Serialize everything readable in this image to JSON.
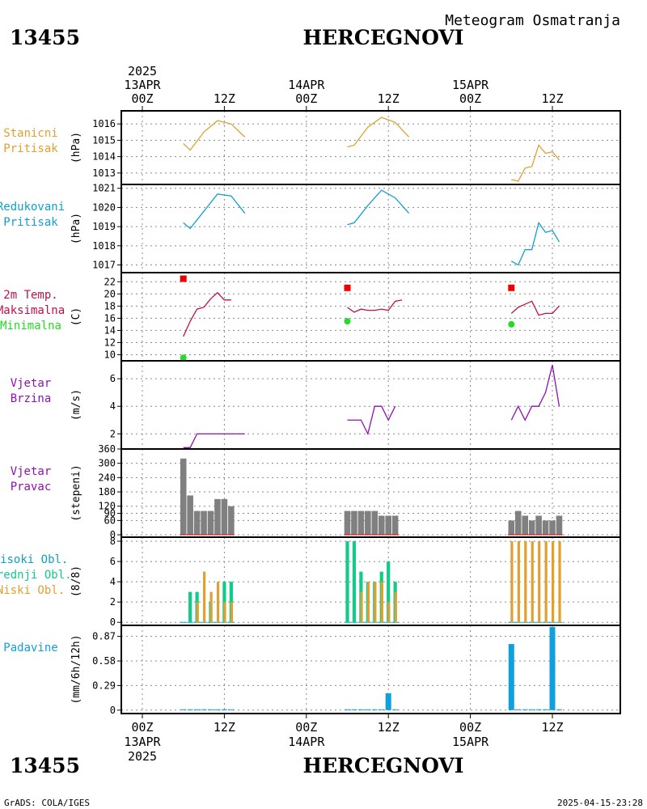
{
  "header": {
    "station_id": "13455",
    "station_name": "HERCEGNOVI",
    "product": "Meteogram Osmatranja",
    "year": "2025"
  },
  "footer": {
    "station_id": "13455",
    "station_name": "HERCEGNOVI",
    "year": "2025",
    "credit": "GrADS: COLA/IGES",
    "timestamp": "2025-04-15-23:28"
  },
  "time_axis": {
    "hour_labels": [
      "00Z",
      "12Z",
      "00Z",
      "12Z",
      "00Z",
      "12Z"
    ],
    "hour_values": [
      0,
      12,
      24,
      36,
      48,
      60
    ],
    "day_labels": [
      "13APR",
      "14APR",
      "15APR"
    ],
    "day_values": [
      0,
      24,
      48
    ]
  },
  "colors": {
    "station_pressure": "#e0a030",
    "reduced_pressure": "#10a0d0",
    "temperature": "#c0104a",
    "tmax": "#ee0000",
    "tmin": "#22dd22",
    "wind": "#9010b0",
    "wind_dir_bar": "#808080",
    "high_cloud": "#10a0c0",
    "mid_cloud": "#10cc88",
    "low_cloud": "#e0a030",
    "precip": "#10a0e0"
  },
  "chart_data": [
    {
      "type": "line",
      "label_lines": [
        "Stanicni",
        "Pritisak"
      ],
      "unit": "(hPa)",
      "ylim": [
        1012.3,
        1016.8
      ],
      "yticks": [
        1013,
        1014,
        1015,
        1016
      ],
      "grid": true,
      "series": [
        {
          "x": [
            6,
            7,
            9,
            11,
            13,
            15
          ],
          "y": [
            1014.8,
            1014.4,
            1015.5,
            1016.2,
            1016.0,
            1015.2
          ]
        },
        {
          "x": [
            30,
            31,
            33,
            35,
            37,
            39
          ],
          "y": [
            1014.6,
            1014.7,
            1015.8,
            1016.4,
            1016.1,
            1015.2
          ]
        },
        {
          "x": [
            54,
            55,
            56,
            57,
            58,
            59,
            60,
            61
          ],
          "y": [
            1012.6,
            1012.5,
            1013.3,
            1013.4,
            1014.7,
            1014.2,
            1014.3,
            1013.8
          ]
        }
      ]
    },
    {
      "type": "line",
      "label_lines": [
        "Redukovani",
        "Pritisak"
      ],
      "unit": "(hPa)",
      "ylim": [
        1016.6,
        1021.2
      ],
      "yticks": [
        1017,
        1018,
        1019,
        1020,
        1021
      ],
      "grid": true,
      "series": [
        {
          "x": [
            6,
            7,
            9,
            11,
            13,
            15
          ],
          "y": [
            1019.2,
            1018.9,
            1019.8,
            1020.7,
            1020.6,
            1019.7
          ]
        },
        {
          "x": [
            30,
            31,
            33,
            35,
            37,
            39
          ],
          "y": [
            1019.1,
            1019.2,
            1020.1,
            1020.9,
            1020.5,
            1019.7
          ]
        },
        {
          "x": [
            54,
            55,
            56,
            57,
            58,
            59,
            60,
            61
          ],
          "y": [
            1017.2,
            1017.0,
            1017.8,
            1017.8,
            1019.2,
            1018.7,
            1018.8,
            1018.2
          ]
        }
      ]
    },
    {
      "type": "line",
      "label_lines": [
        "2m Temp.",
        "Maksimalna",
        "Minimalna"
      ],
      "unit": "(C)",
      "ylim": [
        9,
        23.5
      ],
      "yticks": [
        10,
        12,
        14,
        16,
        18,
        20,
        22
      ],
      "grid": true,
      "series": [
        {
          "name": "2m Temp.",
          "x": [
            6,
            7,
            8,
            9,
            10,
            11,
            12,
            13,
            14,
            15
          ],
          "y": [
            13.0,
            15.5,
            17.5,
            17.8,
            19.2,
            20.2,
            19.0,
            19.0,
            null,
            null
          ]
        },
        {
          "name": "2m Temp.",
          "x": [
            30,
            31,
            32,
            33,
            34,
            35,
            36,
            37,
            38,
            39
          ],
          "y": [
            17.8,
            17.0,
            17.5,
            17.3,
            17.3,
            17.5,
            17.3,
            18.8,
            19.0,
            null
          ]
        },
        {
          "name": "2m Temp.",
          "x": [
            54,
            55,
            56,
            57,
            58,
            59,
            60,
            61
          ],
          "y": [
            16.8,
            17.8,
            18.3,
            18.8,
            16.5,
            16.8,
            16.8,
            18.0
          ]
        }
      ],
      "tmax": {
        "x": [
          6,
          30,
          54
        ],
        "y": [
          22.5,
          21.0,
          21.0
        ]
      },
      "tmin": {
        "x": [
          6,
          30,
          54
        ],
        "y": [
          9.5,
          15.5,
          15.0
        ]
      }
    },
    {
      "type": "line",
      "label_lines": [
        "Vjetar",
        "Brzina"
      ],
      "unit": "(m/s)",
      "ylim": [
        0.9,
        7.3
      ],
      "yticks": [
        2,
        4,
        6
      ],
      "grid": true,
      "series": [
        {
          "x": [
            6,
            7,
            8,
            9,
            10,
            11,
            12,
            13,
            14,
            15
          ],
          "y": [
            1,
            1,
            2,
            2,
            2,
            2,
            2,
            2,
            2,
            2
          ]
        },
        {
          "x": [
            30,
            31,
            32,
            33,
            34,
            35,
            36,
            37,
            38
          ],
          "y": [
            3,
            3,
            3,
            2,
            4,
            4,
            3,
            4,
            null
          ]
        },
        {
          "x": [
            54,
            55,
            56,
            57,
            58,
            59,
            60,
            61
          ],
          "y": [
            3,
            4,
            3,
            4,
            4,
            5,
            7,
            4
          ]
        }
      ]
    },
    {
      "type": "bar",
      "label_lines": [
        "Vjetar",
        "Pravac"
      ],
      "unit": "(stepeni)",
      "ylim": [
        -10,
        360
      ],
      "yticks": [
        0,
        60,
        90,
        120,
        180,
        240,
        300,
        360
      ],
      "grid": true,
      "x": [
        6,
        7,
        8,
        9,
        10,
        11,
        12,
        13,
        30,
        31,
        32,
        33,
        34,
        35,
        36,
        37,
        54,
        55,
        56,
        57,
        58,
        59,
        60,
        61
      ],
      "values": [
        320,
        165,
        100,
        100,
        100,
        150,
        150,
        120,
        100,
        100,
        100,
        100,
        100,
        80,
        80,
        80,
        60,
        100,
        80,
        60,
        80,
        60,
        60,
        80
      ]
    },
    {
      "type": "bar",
      "label_lines": [
        "Visoki Obl.",
        "Srednji Obl.",
        "Niski Obl."
      ],
      "unit": "(8/8)",
      "ylim": [
        -0.3,
        8.4
      ],
      "yticks": [
        0,
        2,
        4,
        6,
        8
      ],
      "grid": true,
      "x": [
        6,
        7,
        8,
        9,
        10,
        11,
        12,
        13,
        30,
        31,
        32,
        33,
        34,
        35,
        36,
        37,
        54,
        55,
        56,
        57,
        58,
        59,
        60,
        61
      ],
      "series": [
        {
          "name": "Visoki Obl.",
          "values": [
            0,
            0,
            0,
            0,
            0,
            0,
            0,
            0,
            0,
            0,
            0,
            0,
            0,
            0,
            0,
            0,
            0,
            0,
            0,
            0,
            0,
            0,
            0,
            0
          ]
        },
        {
          "name": "Srednji Obl.",
          "values": [
            0,
            3,
            3,
            0,
            2,
            0,
            4,
            4,
            8,
            8,
            5,
            4,
            4,
            5,
            6,
            4,
            0,
            0,
            0,
            0,
            0,
            0,
            0,
            0
          ]
        },
        {
          "name": "Niski Obl.",
          "values": [
            0,
            0,
            2,
            5,
            3,
            4,
            2,
            2,
            0,
            0,
            3,
            4,
            4,
            4,
            2,
            3,
            8,
            8,
            8,
            8,
            8,
            8,
            8,
            8
          ]
        }
      ]
    },
    {
      "type": "bar",
      "label_lines": [
        "Padavine"
      ],
      "unit": "(mm/6h/12h)",
      "ylim": [
        -0.04,
        1.0
      ],
      "yticks": [
        0,
        0.29,
        0.58,
        0.87
      ],
      "ytick_labels": [
        "0",
        "0.29",
        "0.58",
        "0.87"
      ],
      "grid": true,
      "x": [
        6,
        7,
        8,
        9,
        10,
        11,
        12,
        13,
        30,
        31,
        32,
        33,
        34,
        35,
        36,
        37,
        54,
        55,
        56,
        57,
        58,
        59,
        60,
        61
      ],
      "values": [
        0.01,
        0.01,
        0.01,
        0.01,
        0.01,
        0.01,
        0.01,
        0.01,
        0.01,
        0.01,
        0.01,
        0.01,
        0.01,
        0.01,
        0.2,
        0.01,
        0.78,
        0.01,
        0.01,
        0.01,
        0.01,
        0.01,
        0.98,
        0.01
      ]
    }
  ]
}
